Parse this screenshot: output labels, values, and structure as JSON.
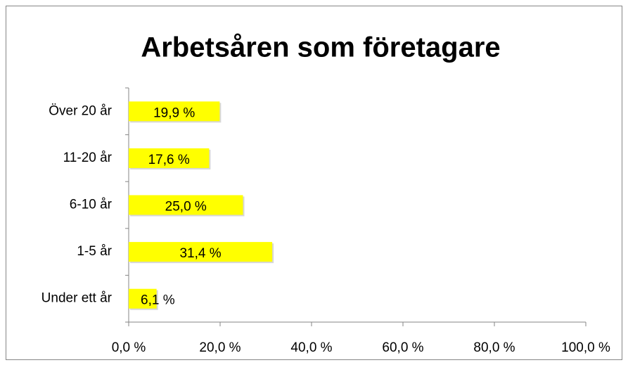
{
  "chart_data": {
    "type": "bar",
    "orientation": "horizontal",
    "title": "Arbetsåren som företagare",
    "categories": [
      "Över 20 år",
      "11-20 år",
      "6-10 år",
      "1-5 år",
      "Under ett år"
    ],
    "values": [
      19.9,
      17.6,
      25.0,
      31.4,
      6.1
    ],
    "value_labels": [
      "19,9 %",
      "17,6 %",
      "25,0 %",
      "31,4 %",
      "6,1 %"
    ],
    "color": "#ffff00",
    "xlim": [
      0,
      100
    ],
    "xticks": [
      {
        "value": 0,
        "label": "0,0 %"
      },
      {
        "value": 20,
        "label": "20,0 %"
      },
      {
        "value": 40,
        "label": "40,0 %"
      },
      {
        "value": 60,
        "label": "60,0 %"
      },
      {
        "value": 80,
        "label": "80,0 %"
      },
      {
        "value": 100,
        "label": "100,0 %"
      }
    ],
    "grid": false
  }
}
